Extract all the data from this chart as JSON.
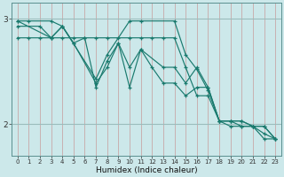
{
  "xlabel": "Humidex (Indice chaleur)",
  "background_color": "#cce8ea",
  "line_color": "#1a7a6e",
  "vgrid_color": "#c8a8a8",
  "hgrid_color": "#9abcbc",
  "xlim": [
    -0.5,
    23.5
  ],
  "ylim": [
    1.7,
    3.15
  ],
  "yticks": [
    2,
    3
  ],
  "xticks": [
    0,
    1,
    2,
    3,
    4,
    5,
    6,
    7,
    8,
    9,
    10,
    11,
    12,
    13,
    14,
    15,
    16,
    17,
    18,
    19,
    20,
    21,
    22,
    23
  ],
  "series": [
    {
      "x": [
        0,
        1,
        3,
        4,
        7,
        8,
        10,
        11,
        14,
        15,
        16,
        17,
        18,
        19,
        20,
        21,
        22,
        23
      ],
      "y": [
        2.98,
        2.98,
        2.98,
        2.93,
        2.43,
        2.66,
        2.98,
        2.98,
        2.98,
        2.66,
        2.52,
        2.32,
        2.03,
        2.03,
        2.03,
        1.98,
        1.98,
        1.86
      ]
    },
    {
      "x": [
        0,
        3,
        4,
        5,
        7,
        8,
        9,
        10,
        11,
        13,
        14,
        15,
        16,
        17,
        18,
        19,
        20,
        21,
        22,
        23
      ],
      "y": [
        2.98,
        2.82,
        2.93,
        2.77,
        2.39,
        2.54,
        2.77,
        2.54,
        2.71,
        2.54,
        2.54,
        2.39,
        2.54,
        2.35,
        2.03,
        2.03,
        2.03,
        1.98,
        1.98,
        1.86
      ]
    },
    {
      "x": [
        0,
        2,
        3,
        4,
        5,
        6,
        7,
        8,
        9,
        10,
        11,
        12,
        13,
        14,
        15,
        16,
        17,
        18,
        19,
        20,
        21,
        22,
        23
      ],
      "y": [
        2.93,
        2.93,
        2.82,
        2.93,
        2.77,
        2.82,
        2.35,
        2.6,
        2.77,
        2.35,
        2.71,
        2.54,
        2.39,
        2.39,
        2.27,
        2.35,
        2.35,
        2.03,
        2.03,
        1.98,
        1.98,
        1.86,
        1.86
      ]
    },
    {
      "x": [
        0,
        1,
        2,
        3,
        4,
        5,
        6,
        7,
        8,
        9,
        10,
        11,
        12,
        13,
        14,
        15,
        16,
        17,
        18,
        19,
        20,
        21,
        22,
        23
      ],
      "y": [
        2.82,
        2.82,
        2.82,
        2.82,
        2.82,
        2.82,
        2.82,
        2.82,
        2.82,
        2.82,
        2.82,
        2.82,
        2.82,
        2.82,
        2.82,
        2.54,
        2.27,
        2.27,
        2.03,
        1.98,
        1.98,
        1.98,
        1.91,
        1.86
      ]
    }
  ]
}
